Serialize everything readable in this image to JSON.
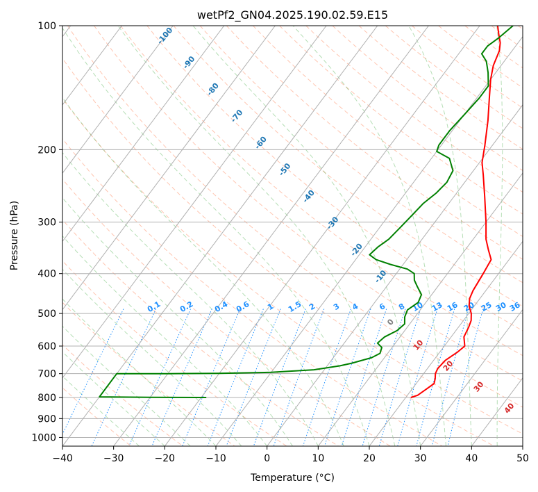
{
  "chart_data": {
    "type": "line",
    "title": "wetPf2_GN04.2025.190.02.59.E15",
    "xlabel": "Temperature (°C)",
    "ylabel": "Pressure (hPa)",
    "xlim": [
      -40,
      50
    ],
    "ylim": [
      1050,
      100
    ],
    "y_scale": "log",
    "grid": true,
    "x_ticks": [
      -40,
      -30,
      -20,
      -10,
      0,
      10,
      20,
      30,
      40,
      50
    ],
    "x_tick_labels": [
      "−40",
      "−30",
      "−20",
      "−10",
      "0",
      "10",
      "20",
      "30",
      "40",
      "50"
    ],
    "y_ticks": [
      100,
      200,
      300,
      400,
      500,
      600,
      700,
      800,
      900,
      1000
    ],
    "y_tick_labels": [
      "100",
      "200",
      "300",
      "400",
      "500",
      "600",
      "700",
      "800",
      "900",
      "1000"
    ],
    "series": [
      {
        "color": "#ff0000",
        "points": [
          {
            "p": 800,
            "t": 21.0
          },
          {
            "p": 790,
            "t": 22.0
          },
          {
            "p": 770,
            "t": 22.6
          },
          {
            "p": 740,
            "t": 23.5
          },
          {
            "p": 720,
            "t": 23.0
          },
          {
            "p": 700,
            "t": 22.3
          },
          {
            "p": 680,
            "t": 22.0
          },
          {
            "p": 650,
            "t": 22.3
          },
          {
            "p": 620,
            "t": 23.5
          },
          {
            "p": 600,
            "t": 24.0
          },
          {
            "p": 570,
            "t": 22.5
          },
          {
            "p": 540,
            "t": 22.0
          },
          {
            "p": 520,
            "t": 21.5
          },
          {
            "p": 500,
            "t": 20.5
          },
          {
            "p": 480,
            "t": 19.0
          },
          {
            "p": 460,
            "t": 18.0
          },
          {
            "p": 440,
            "t": 17.5
          },
          {
            "p": 400,
            "t": 17.0
          },
          {
            "p": 370,
            "t": 16.5
          },
          {
            "p": 350,
            "t": 14.5
          },
          {
            "p": 330,
            "t": 12.5
          },
          {
            "p": 300,
            "t": 10.0
          },
          {
            "p": 260,
            "t": 6.0
          },
          {
            "p": 230,
            "t": 2.5
          },
          {
            "p": 215,
            "t": 0.5
          },
          {
            "p": 195,
            "t": -1.5
          },
          {
            "p": 170,
            "t": -4.5
          },
          {
            "p": 150,
            "t": -7.5
          },
          {
            "p": 135,
            "t": -10.0
          },
          {
            "p": 125,
            "t": -11.5
          },
          {
            "p": 115,
            "t": -12.5
          },
          {
            "p": 110,
            "t": -13.5
          },
          {
            "p": 105,
            "t": -15.0
          },
          {
            "p": 100,
            "t": -16.5
          }
        ]
      },
      {
        "color": "#008000",
        "points": [
          {
            "p": 800,
            "t": -19.0
          },
          {
            "p": 799,
            "t": -30.0
          },
          {
            "p": 797,
            "t": -40.0
          },
          {
            "p": 700,
            "t": -40.0
          },
          {
            "p": 700,
            "t": -30.0
          },
          {
            "p": 699,
            "t": -20.0
          },
          {
            "p": 695,
            "t": -10.0
          },
          {
            "p": 685,
            "t": -2.0
          },
          {
            "p": 670,
            "t": 2.5
          },
          {
            "p": 660,
            "t": 4.5
          },
          {
            "p": 640,
            "t": 7.5
          },
          {
            "p": 625,
            "t": 8.5
          },
          {
            "p": 605,
            "t": 8.0
          },
          {
            "p": 590,
            "t": 6.5
          },
          {
            "p": 570,
            "t": 7.0
          },
          {
            "p": 550,
            "t": 8.5
          },
          {
            "p": 530,
            "t": 9.0
          },
          {
            "p": 510,
            "t": 8.0
          },
          {
            "p": 490,
            "t": 7.5
          },
          {
            "p": 470,
            "t": 8.5
          },
          {
            "p": 450,
            "t": 8.0
          },
          {
            "p": 430,
            "t": 6.0
          },
          {
            "p": 415,
            "t": 4.5
          },
          {
            "p": 400,
            "t": 3.5
          },
          {
            "p": 390,
            "t": 1.5
          },
          {
            "p": 380,
            "t": -2.5
          },
          {
            "p": 370,
            "t": -6.0
          },
          {
            "p": 360,
            "t": -8.0
          },
          {
            "p": 345,
            "t": -7.5
          },
          {
            "p": 330,
            "t": -6.5
          },
          {
            "p": 310,
            "t": -6.0
          },
          {
            "p": 290,
            "t": -5.5
          },
          {
            "p": 270,
            "t": -5.0
          },
          {
            "p": 255,
            "t": -4.0
          },
          {
            "p": 240,
            "t": -3.5
          },
          {
            "p": 225,
            "t": -4.0
          },
          {
            "p": 210,
            "t": -6.5
          },
          {
            "p": 202,
            "t": -10.0
          },
          {
            "p": 195,
            "t": -10.5
          },
          {
            "p": 180,
            "t": -10.5
          },
          {
            "p": 165,
            "t": -10.0
          },
          {
            "p": 150,
            "t": -9.5
          },
          {
            "p": 140,
            "t": -9.5
          },
          {
            "p": 130,
            "t": -11.5
          },
          {
            "p": 122,
            "t": -13.5
          },
          {
            "p": 117,
            "t": -15.5
          },
          {
            "p": 112,
            "t": -15.5
          },
          {
            "p": 107,
            "t": -14.5
          },
          {
            "p": 100,
            "t": -13.5
          }
        ]
      }
    ],
    "dry_adiabat_labels": [
      "-100",
      "-90",
      "-80",
      "-70",
      "-60",
      "-50",
      "-40",
      "-30",
      "-20",
      "-10"
    ],
    "dry_adiabat_label_color": "#1f77b4",
    "mixing_ratio_labels": [
      "0.1",
      "0.2",
      "0.4",
      "0.6",
      "1",
      "1.5",
      "2",
      "3",
      "4",
      "6",
      "8",
      "10",
      "13",
      "16",
      "20",
      "25",
      "30",
      "36"
    ],
    "mixing_ratio_label_color": "#1e90ff",
    "moist_adiabat_labels": [
      "0",
      "10",
      "20",
      "30",
      "40"
    ],
    "moist_adiabat_label_color": "#d62728",
    "moist_adiabat_zero_color": "#808080"
  }
}
